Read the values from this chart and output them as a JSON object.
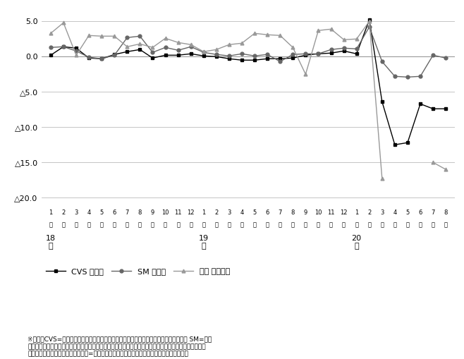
{
  "legend": [
    "CVS 既存店",
    "SM 既存店",
    "外食 外食全店"
  ],
  "note1": "※出典：CVS=日本フランチャイズチェーン協会、「日配食品」の既存店売上高前年比。 SM=日本",
  "note2": "スーパーマーケット協会、オール日本スーパーマーケット協会、全国スーパーマーケット協会合同集計の",
  "note3": "「惣菜」既存店売上高前年比。外食=日本フードサービス協会の「全店」売上高。単位は％。",
  "cvs": [
    0.2,
    1.4,
    1.2,
    -0.2,
    -0.3,
    0.3,
    0.7,
    1.0,
    -0.2,
    0.2,
    0.2,
    0.4,
    0.1,
    0.0,
    -0.3,
    -0.5,
    -0.5,
    -0.3,
    -0.3,
    -0.2,
    0.2,
    0.4,
    0.5,
    0.8,
    0.4,
    5.2,
    -6.4,
    -12.5,
    -12.2,
    -6.7,
    -7.4,
    -7.4
  ],
  "sm": [
    1.3,
    1.4,
    0.8,
    -0.1,
    -0.3,
    0.2,
    2.7,
    2.9,
    0.6,
    1.3,
    0.9,
    1.4,
    0.6,
    0.3,
    0.1,
    0.4,
    0.1,
    0.3,
    -0.7,
    0.3,
    0.4,
    0.4,
    1.0,
    1.2,
    1.1,
    4.2,
    -0.7,
    -2.8,
    -2.9,
    -2.8,
    0.2,
    -0.2
  ],
  "gaishoku": [
    3.3,
    4.8,
    0.2,
    3.0,
    2.9,
    2.9,
    1.4,
    1.8,
    1.3,
    2.6,
    2.0,
    1.7,
    0.7,
    1.0,
    1.7,
    1.9,
    3.3,
    3.1,
    3.0,
    1.3,
    -2.5,
    3.7,
    3.9,
    2.4,
    2.5,
    5.0,
    -17.3,
    null,
    null,
    null,
    -15.0,
    -16.0
  ],
  "yticks": [
    5.0,
    0.0,
    -5.0,
    -10.0,
    -15.0,
    -20.0
  ],
  "ylim": [
    -21.5,
    6.5
  ],
  "colors": {
    "cvs": "#000000",
    "sm": "#666666",
    "gaishoku": "#999999"
  },
  "markers": {
    "cvs": "s",
    "sm": "o",
    "gaishoku": "^"
  },
  "background": "#ffffff"
}
